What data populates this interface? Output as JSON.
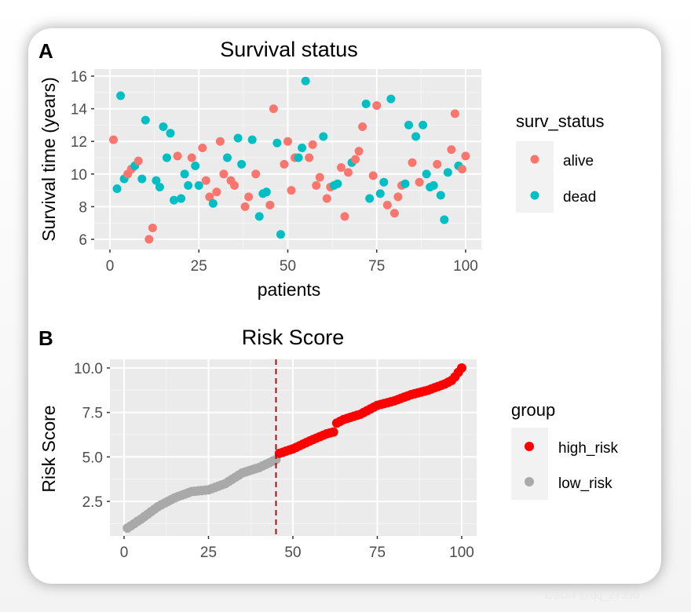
{
  "watermark": "CSDN @qq_27390",
  "chart_data": [
    {
      "panel_label": "A",
      "type": "scatter",
      "title": "Survival status",
      "xlabel": "patients",
      "ylabel": "Survival time (years)",
      "xlim": [
        0,
        100
      ],
      "ylim": [
        6,
        16
      ],
      "xticks": [
        "0",
        "25",
        "50",
        "75",
        "100"
      ],
      "yticks": [
        "6",
        "8",
        "10",
        "12",
        "14",
        "16"
      ],
      "grid": true,
      "legend": {
        "title": "surv_status",
        "position": "right",
        "entries": [
          {
            "label": "alive",
            "color": "#F8766D"
          },
          {
            "label": "dead",
            "color": "#00BFC4"
          }
        ]
      },
      "points": {
        "x": [
          1,
          2,
          3,
          4,
          5,
          6,
          7,
          8,
          9,
          10,
          11,
          12,
          13,
          14,
          15,
          16,
          17,
          18,
          19,
          20,
          21,
          22,
          23,
          24,
          25,
          26,
          27,
          28,
          29,
          30,
          31,
          32,
          33,
          34,
          35,
          36,
          37,
          38,
          39,
          40,
          41,
          42,
          43,
          44,
          45,
          46,
          47,
          48,
          49,
          50,
          51,
          52,
          53,
          54,
          55,
          56,
          57,
          58,
          59,
          60,
          61,
          62,
          63,
          64,
          65,
          66,
          67,
          68,
          69,
          70,
          71,
          72,
          73,
          74,
          75,
          76,
          77,
          78,
          79,
          80,
          81,
          82,
          83,
          84,
          85,
          86,
          87,
          88,
          89,
          90,
          91,
          92,
          93,
          94,
          95,
          96,
          97,
          98,
          99,
          100
        ],
        "y": [
          12.1,
          9.1,
          14.8,
          9.7,
          10.0,
          10.3,
          10.5,
          10.8,
          9.7,
          13.3,
          6.0,
          6.7,
          9.6,
          9.2,
          12.9,
          11.0,
          12.5,
          8.4,
          11.1,
          8.5,
          10.0,
          9.3,
          11.0,
          10.5,
          9.3,
          11.6,
          9.6,
          8.6,
          8.2,
          8.9,
          12.0,
          10.0,
          11.0,
          9.6,
          9.3,
          12.2,
          10.6,
          8.0,
          8.6,
          12.1,
          10.0,
          7.4,
          8.8,
          8.9,
          8.1,
          14.0,
          11.9,
          6.3,
          10.6,
          12.0,
          9.0,
          11.0,
          11.0,
          11.6,
          15.7,
          11.0,
          11.8,
          9.3,
          9.8,
          12.3,
          8.5,
          9.2,
          9.3,
          9.4,
          10.4,
          7.4,
          10.1,
          10.7,
          10.9,
          11.4,
          12.9,
          14.3,
          8.5,
          9.9,
          14.2,
          8.8,
          9.5,
          8.1,
          14.6,
          7.6,
          8.6,
          9.3,
          9.4,
          13.0,
          10.7,
          12.3,
          9.5,
          13.0,
          10.0,
          9.2,
          9.3,
          10.6,
          8.7,
          7.2,
          10.1,
          11.5,
          13.7,
          10.5,
          10.3,
          11.1
        ],
        "status": [
          "alive",
          "dead",
          "dead",
          "dead",
          "alive",
          "alive",
          "dead",
          "alive",
          "dead",
          "dead",
          "alive",
          "alive",
          "dead",
          "dead",
          "dead",
          "dead",
          "dead",
          "dead",
          "alive",
          "dead",
          "dead",
          "dead",
          "alive",
          "dead",
          "dead",
          "alive",
          "alive",
          "alive",
          "dead",
          "alive",
          "alive",
          "alive",
          "dead",
          "alive",
          "alive",
          "dead",
          "dead",
          "alive",
          "alive",
          "dead",
          "alive",
          "dead",
          "dead",
          "dead",
          "alive",
          "alive",
          "dead",
          "dead",
          "alive",
          "alive",
          "alive",
          "alive",
          "dead",
          "dead",
          "dead",
          "alive",
          "alive",
          "alive",
          "alive",
          "dead",
          "alive",
          "alive",
          "dead",
          "dead",
          "alive",
          "alive",
          "alive",
          "dead",
          "alive",
          "alive",
          "alive",
          "dead",
          "dead",
          "alive",
          "alive",
          "dead",
          "dead",
          "alive",
          "dead",
          "alive",
          "alive",
          "alive",
          "dead",
          "dead",
          "alive",
          "dead",
          "alive",
          "dead",
          "dead",
          "dead",
          "dead",
          "alive",
          "dead",
          "dead",
          "dead",
          "alive",
          "alive",
          "dead",
          "alive",
          "alive"
        ]
      }
    },
    {
      "panel_label": "B",
      "type": "scatter",
      "title": "Risk Score",
      "xlabel": "",
      "ylabel": "Risk Score",
      "xlim": [
        0,
        100
      ],
      "ylim": [
        1,
        10
      ],
      "xticks": [
        "0",
        "25",
        "50",
        "75",
        "100"
      ],
      "yticks": [
        "2.5",
        "5.0",
        "7.5",
        "10.0"
      ],
      "grid": true,
      "cutoff_x": 45,
      "cutoff_line_color": "#A50F15",
      "legend": {
        "title": "group",
        "position": "right",
        "entries": [
          {
            "label": "high_risk",
            "color": "#FF0000"
          },
          {
            "label": "low_risk",
            "color": "#A9A9A9"
          }
        ]
      },
      "points": {
        "y": [
          1.0,
          1.12,
          1.25,
          1.38,
          1.5,
          1.64,
          1.78,
          1.92,
          2.06,
          2.2,
          2.3,
          2.4,
          2.5,
          2.6,
          2.7,
          2.77,
          2.84,
          2.91,
          2.98,
          3.05,
          3.07,
          3.09,
          3.11,
          3.13,
          3.15,
          3.22,
          3.29,
          3.36,
          3.43,
          3.5,
          3.62,
          3.74,
          3.86,
          3.98,
          4.1,
          4.16,
          4.22,
          4.28,
          4.34,
          4.4,
          4.49,
          4.58,
          4.67,
          4.76,
          4.85,
          5.2,
          5.26,
          5.33,
          5.39,
          5.45,
          5.54,
          5.63,
          5.72,
          5.81,
          5.9,
          5.98,
          6.06,
          6.14,
          6.22,
          6.3,
          6.35,
          6.4,
          6.9,
          7.0,
          7.1,
          7.16,
          7.22,
          7.28,
          7.34,
          7.4,
          7.5,
          7.6,
          7.7,
          7.8,
          7.9,
          7.95,
          8.0,
          8.05,
          8.1,
          8.15,
          8.22,
          8.29,
          8.36,
          8.43,
          8.5,
          8.55,
          8.6,
          8.65,
          8.7,
          8.75,
          8.82,
          8.89,
          8.96,
          9.03,
          9.1,
          9.2,
          9.3,
          9.5,
          9.75,
          10.0
        ],
        "group_rule": "low_risk for patients 1-45, high_risk for 46-100"
      }
    }
  ]
}
